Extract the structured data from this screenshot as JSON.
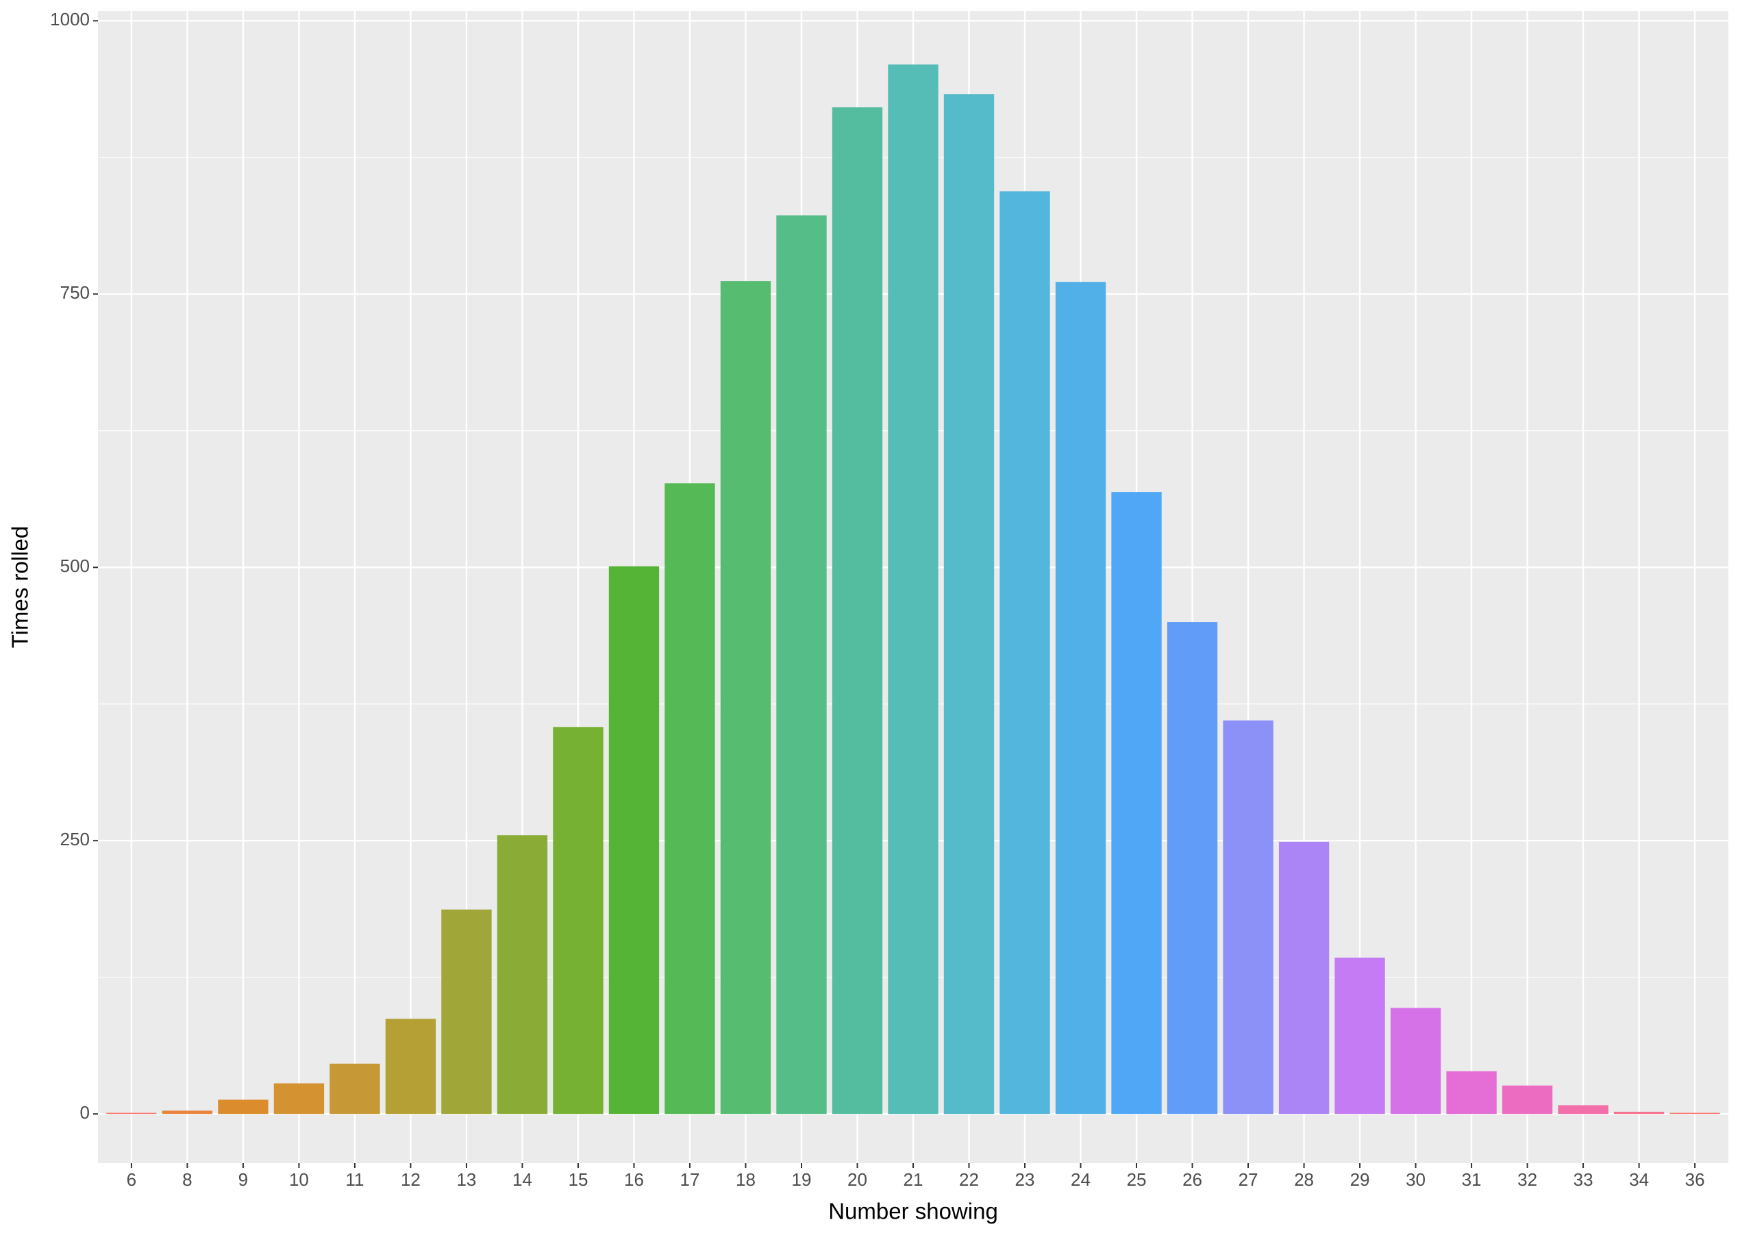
{
  "chart_data": {
    "type": "bar",
    "x_label": "Number showing",
    "y_label": "Times rolled",
    "categories": [
      "6",
      "8",
      "9",
      "10",
      "11",
      "12",
      "13",
      "14",
      "15",
      "16",
      "17",
      "18",
      "19",
      "20",
      "21",
      "22",
      "23",
      "24",
      "25",
      "26",
      "27",
      "28",
      "29",
      "30",
      "31",
      "32",
      "33",
      "34",
      "36"
    ],
    "values": [
      1,
      3,
      13,
      28,
      46,
      87,
      187,
      255,
      354,
      501,
      577,
      762,
      822,
      921,
      960,
      933,
      844,
      761,
      569,
      450,
      360,
      249,
      143,
      97,
      39,
      26,
      8,
      2,
      1
    ],
    "colors": [
      "#F8766D",
      "#E8843E",
      "#DB8D2D",
      "#D59231",
      "#C79836",
      "#B4A034",
      "#A0A637",
      "#8AAC36",
      "#76B133",
      "#55B435",
      "#55BA55",
      "#55BC70",
      "#55BD88",
      "#55BD9F",
      "#55BCB6",
      "#55BACA",
      "#53B6DC",
      "#52B0E8",
      "#4FA7F5",
      "#619CF8",
      "#8B91F6",
      "#AB85F5",
      "#C47BF3",
      "#D672E8",
      "#E46ED6",
      "#EC6CC2",
      "#F26FAA",
      "#F6728F",
      "#F8766D"
    ],
    "ylim": [
      -45,
      1009
    ],
    "yticks": [
      0,
      250,
      500,
      750,
      1000
    ],
    "grid": true
  }
}
